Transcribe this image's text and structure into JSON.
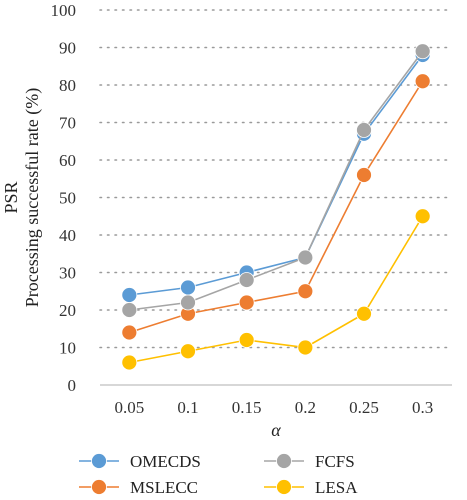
{
  "chart_data": {
    "type": "line",
    "xlabel": "α",
    "ylabel_line1": "PSR",
    "ylabel_line2": "Processing successful rate (%)",
    "categories": [
      "0.05",
      "0.1",
      "0.15",
      "0.2",
      "0.25",
      "0.3"
    ],
    "ylim": [
      0,
      100
    ],
    "yticks": [
      0,
      10,
      20,
      30,
      40,
      50,
      60,
      70,
      80,
      90,
      100
    ],
    "grid": "dotted-horizontal",
    "legend_position": "bottom",
    "series": [
      {
        "name": "OMECDS",
        "color": "#5b9bd5",
        "values": [
          24,
          26,
          30,
          34,
          67,
          88
        ]
      },
      {
        "name": "FCFS",
        "color": "#a5a5a5",
        "values": [
          20,
          22,
          28,
          34,
          68,
          89
        ]
      },
      {
        "name": "MSLECC",
        "color": "#ed7d31",
        "values": [
          14,
          19,
          22,
          25,
          56,
          81
        ]
      },
      {
        "name": "LESA",
        "color": "#ffc000",
        "values": [
          6,
          9,
          12,
          10,
          19,
          45
        ]
      }
    ]
  }
}
